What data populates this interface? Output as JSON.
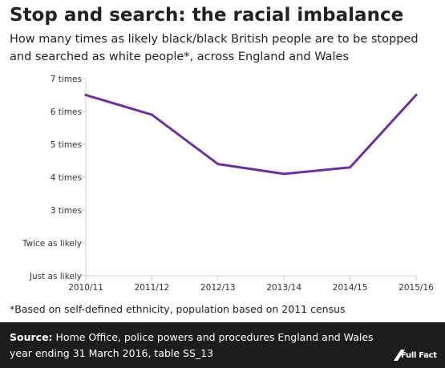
{
  "header": {
    "title": "Stop and search: the racial imbalance",
    "subtitle": "How many times as likely black/black British people are to be stopped and searched as white people*, across England and Wales"
  },
  "chart_data": {
    "type": "line",
    "categories": [
      "2010/11",
      "2011/12",
      "2012/13",
      "2013/14",
      "2014/15",
      "2015/16"
    ],
    "series": [
      {
        "values": [
          6.5,
          5.9,
          4.4,
          4.1,
          4.3,
          6.5
        ]
      }
    ],
    "yticks": [
      {
        "value": 1,
        "label": "Just as likely"
      },
      {
        "value": 2,
        "label": "Twice as likely"
      },
      {
        "value": 3,
        "label": "3 times"
      },
      {
        "value": 4,
        "label": "4 times"
      },
      {
        "value": 5,
        "label": "5 times"
      },
      {
        "value": 6,
        "label": "6 times"
      },
      {
        "value": 7,
        "label": "7 times"
      }
    ],
    "ylim": [
      1,
      7
    ],
    "grid": false,
    "line_color": "#6e2f9e"
  },
  "footnote": "*Based on self-defined ethnicity, population based on 2011 census",
  "footer": {
    "source_label": "Source:",
    "source_text": "Home Office, police powers and procedures England and Wales year ending 31 March 2016, table SS_13",
    "logo_text": "Full Fact"
  },
  "colors": {
    "footer_bg": "#1d1d1b",
    "line": "#6e2f9e"
  }
}
